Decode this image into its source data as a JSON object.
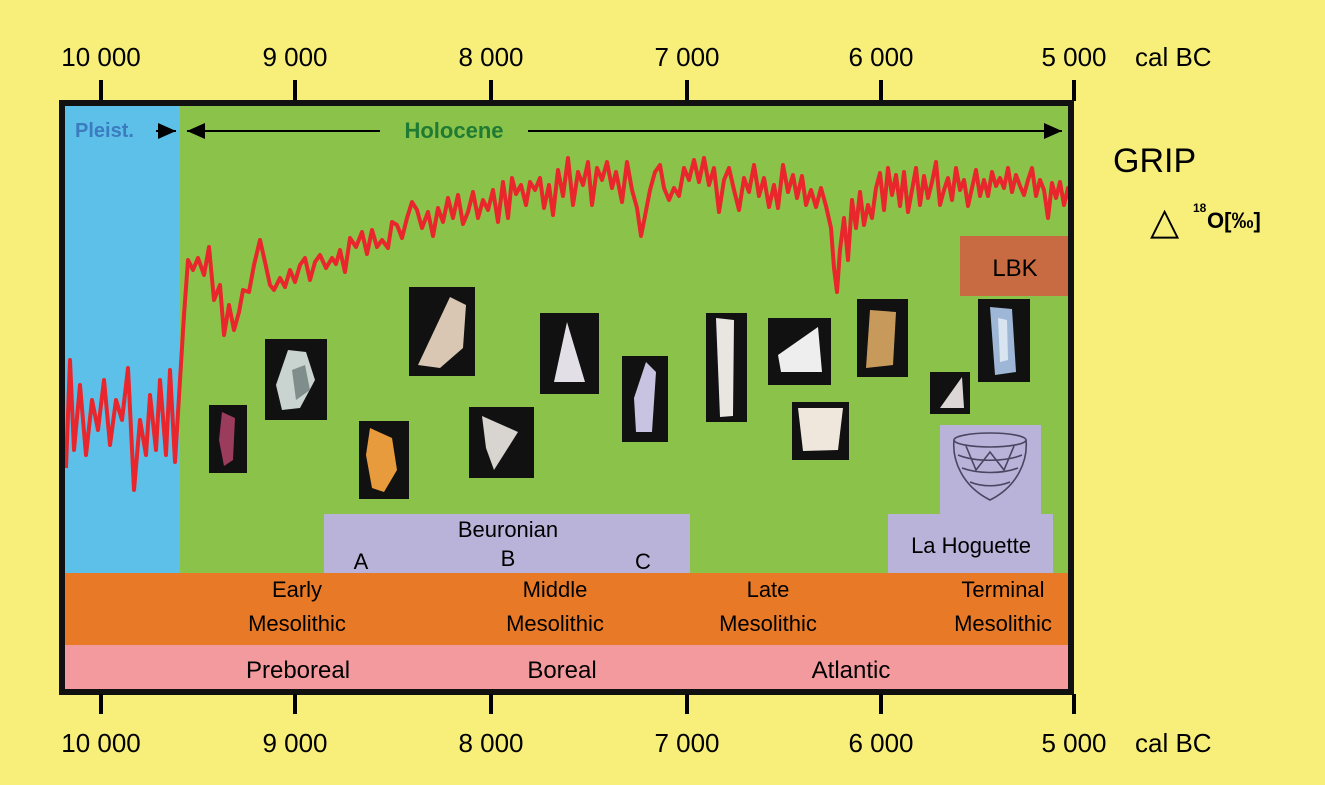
{
  "axis": {
    "ticks": [
      "10 000",
      "9 000",
      "8 000",
      "7 000",
      "6 000",
      "5 000"
    ],
    "tick_years": [
      10000,
      9000,
      8000,
      7000,
      6000,
      5000
    ],
    "unit": "cal BC",
    "range_cal_bc": [
      10200,
      5000
    ]
  },
  "epochs": {
    "pleistocene": "Pleist.",
    "holocene": "Holocene",
    "boundary_year": 9600
  },
  "proxy": {
    "name": "GRIP",
    "symbol": "△",
    "sup": "18",
    "measure": "O[‰]",
    "line_color": "#e8262b"
  },
  "cultures": {
    "lbk": "LBK",
    "la_hoguette": "La Hoguette",
    "beuronian": {
      "title": "Beuronian",
      "phases": [
        "A",
        "B",
        "C"
      ]
    }
  },
  "mesolithic": [
    "Early",
    "Mesolithic",
    "Middle",
    "Mesolithic",
    "Late",
    "Mesolithic",
    "Terminal",
    "Mesolithic"
  ],
  "climate_periods": [
    "Preboreal",
    "Boreal",
    "Atlantic"
  ],
  "colors": {
    "background": "#f7ef7a",
    "pleistocene": "#5dc0e8",
    "holocene": "#8bc34a",
    "mesolithic_band": "#e87a27",
    "climate_band": "#f29a9d",
    "beuronian_box": "#b9b3d9",
    "lbk_box": "#c86a42",
    "holocene_text": "#1f7a34",
    "pleist_text": "#3b7bbf"
  }
}
